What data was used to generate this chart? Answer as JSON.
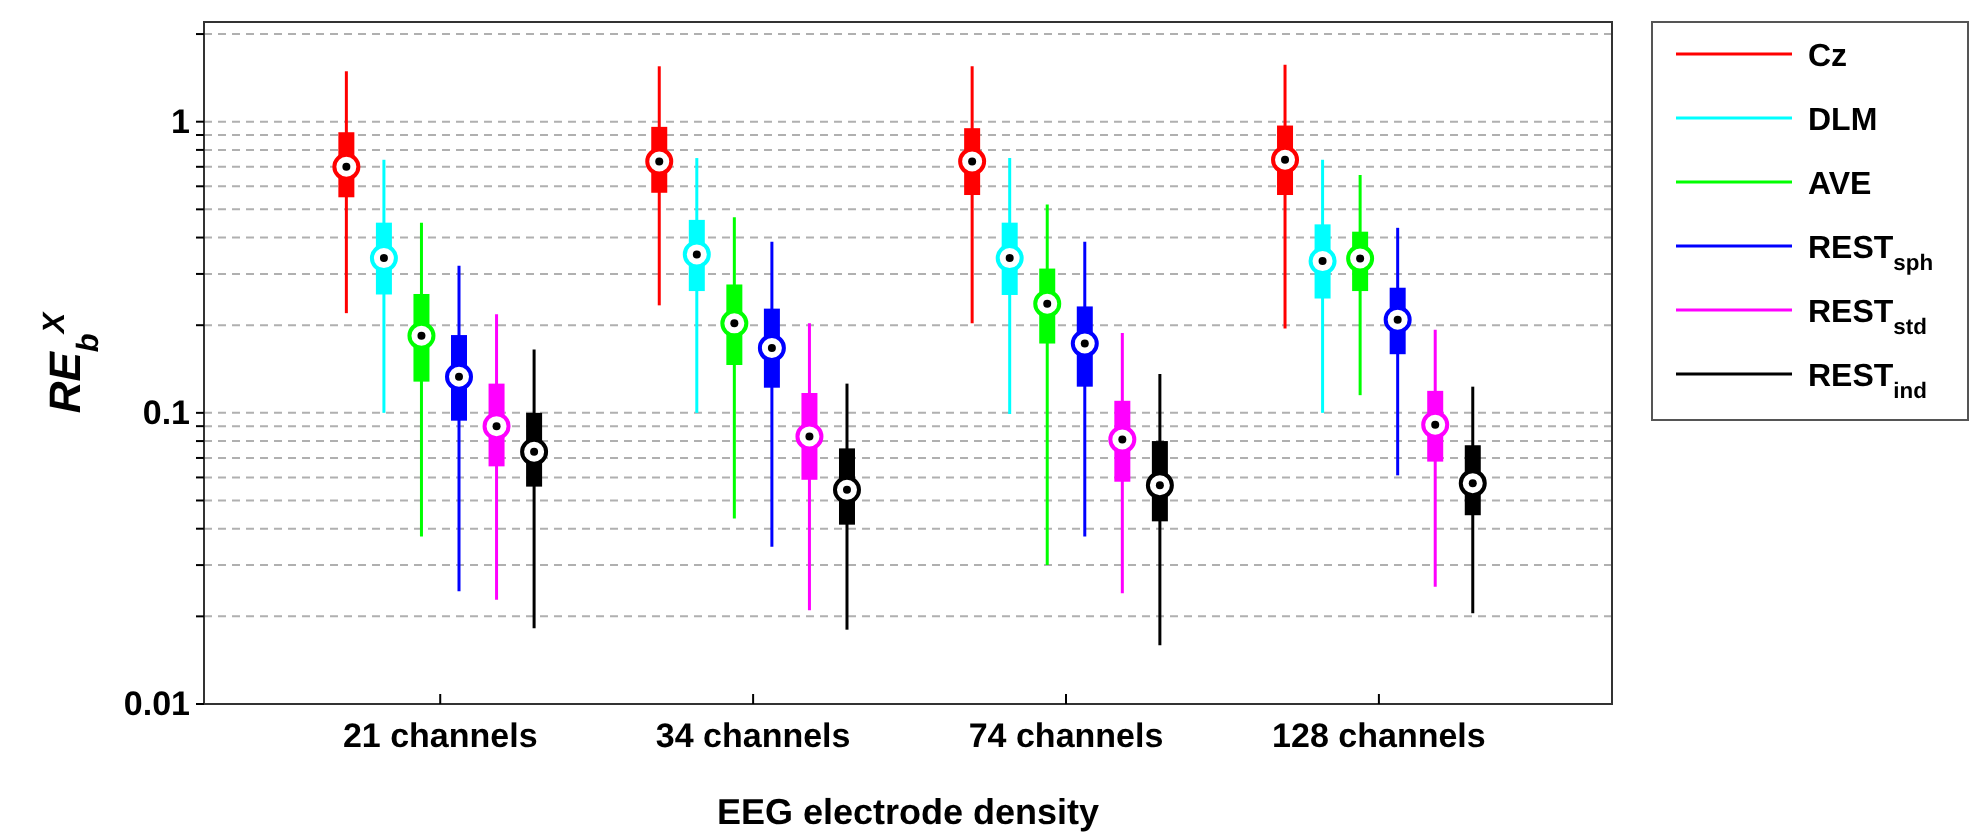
{
  "chart_data": {
    "type": "box",
    "xlabel": "EEG electrode density",
    "ylabel": "RE$_{b}$$^{X}$",
    "categories": [
      "21 channels",
      "34 channels",
      "74 channels",
      "128 channels"
    ],
    "log": true,
    "ylim": [
      0.01,
      2.2
    ],
    "yticks": [
      0.01,
      {
        "value": 0.02,
        "label": null
      },
      {
        "value": 0.03,
        "label": null
      },
      {
        "value": 0.04,
        "label": null
      },
      {
        "value": 0.05,
        "label": null
      },
      {
        "value": 0.06,
        "label": null
      },
      {
        "value": 0.07,
        "label": null
      },
      {
        "value": 0.08,
        "label": null
      },
      {
        "value": 0.09,
        "label": null
      },
      0.1,
      {
        "value": 0.2,
        "label": null
      },
      {
        "value": 0.3,
        "label": null
      },
      {
        "value": 0.4,
        "label": null
      },
      {
        "value": 0.5,
        "label": null
      },
      {
        "value": 0.6,
        "label": null
      },
      {
        "value": 0.7,
        "label": null
      },
      {
        "value": 0.8,
        "label": null
      },
      {
        "value": 0.9,
        "label": null
      },
      1,
      {
        "value": 2,
        "label": null
      }
    ],
    "grid": "y",
    "legend": "top right",
    "marker": "circle",
    "series": [
      {
        "name": "Cz",
        "color": "#ff0000",
        "boxes": [
          {
            "low": 0.22,
            "q1": 0.55,
            "median": 0.7,
            "q3": 0.92,
            "high": 1.49
          },
          {
            "low": 0.234,
            "q1": 0.57,
            "median": 0.73,
            "q3": 0.96,
            "high": 1.55
          },
          {
            "low": 0.203,
            "q1": 0.56,
            "median": 0.73,
            "q3": 0.95,
            "high": 1.55
          },
          {
            "low": 0.195,
            "q1": 0.56,
            "median": 0.74,
            "q3": 0.97,
            "high": 1.57
          }
        ]
      },
      {
        "name": "DLM",
        "color": "#00ffff",
        "boxes": [
          {
            "low": 0.1,
            "q1": 0.255,
            "median": 0.34,
            "q3": 0.45,
            "high": 0.74
          },
          {
            "low": 0.1,
            "q1": 0.262,
            "median": 0.35,
            "q3": 0.46,
            "high": 0.75
          },
          {
            "low": 0.099,
            "q1": 0.254,
            "median": 0.34,
            "q3": 0.45,
            "high": 0.75
          },
          {
            "low": 0.1,
            "q1": 0.247,
            "median": 0.332,
            "q3": 0.444,
            "high": 0.74
          }
        ]
      },
      {
        "name": "AVE",
        "color": "#00ff00",
        "boxes": [
          {
            "low": 0.0376,
            "q1": 0.128,
            "median": 0.184,
            "q3": 0.256,
            "high": 0.45
          },
          {
            "low": 0.0434,
            "q1": 0.146,
            "median": 0.203,
            "q3": 0.276,
            "high": 0.47
          },
          {
            "low": 0.03,
            "q1": 0.173,
            "median": 0.237,
            "q3": 0.313,
            "high": 0.52
          },
          {
            "low": 0.115,
            "q1": 0.262,
            "median": 0.339,
            "q3": 0.419,
            "high": 0.656
          }
        ]
      },
      {
        "name": "REST$_{sph}$",
        "color": "#0000ff",
        "boxes": [
          {
            "low": 0.0244,
            "q1": 0.094,
            "median": 0.133,
            "q3": 0.185,
            "high": 0.32
          },
          {
            "low": 0.0347,
            "q1": 0.122,
            "median": 0.167,
            "q3": 0.228,
            "high": 0.387
          },
          {
            "low": 0.0376,
            "q1": 0.123,
            "median": 0.173,
            "q3": 0.232,
            "high": 0.387
          },
          {
            "low": 0.061,
            "q1": 0.159,
            "median": 0.209,
            "q3": 0.269,
            "high": 0.432
          }
        ]
      },
      {
        "name": "REST$_{std}$",
        "color": "#ff00ff",
        "boxes": [
          {
            "low": 0.0228,
            "q1": 0.0655,
            "median": 0.09,
            "q3": 0.126,
            "high": 0.218
          },
          {
            "low": 0.021,
            "q1": 0.0589,
            "median": 0.083,
            "q3": 0.117,
            "high": 0.203
          },
          {
            "low": 0.024,
            "q1": 0.058,
            "median": 0.081,
            "q3": 0.11,
            "high": 0.188
          },
          {
            "low": 0.0253,
            "q1": 0.068,
            "median": 0.091,
            "q3": 0.119,
            "high": 0.193
          }
        ]
      },
      {
        "name": "REST$_{ind}$",
        "color": "#000000",
        "boxes": [
          {
            "low": 0.0182,
            "q1": 0.0558,
            "median": 0.0735,
            "q3": 0.1,
            "high": 0.165
          },
          {
            "low": 0.018,
            "q1": 0.0413,
            "median": 0.0544,
            "q3": 0.0755,
            "high": 0.126
          },
          {
            "low": 0.0159,
            "q1": 0.0424,
            "median": 0.0564,
            "q3": 0.08,
            "high": 0.136
          },
          {
            "low": 0.0205,
            "q1": 0.0445,
            "median": 0.0573,
            "q3": 0.0774,
            "high": 0.123
          }
        ]
      }
    ]
  }
}
